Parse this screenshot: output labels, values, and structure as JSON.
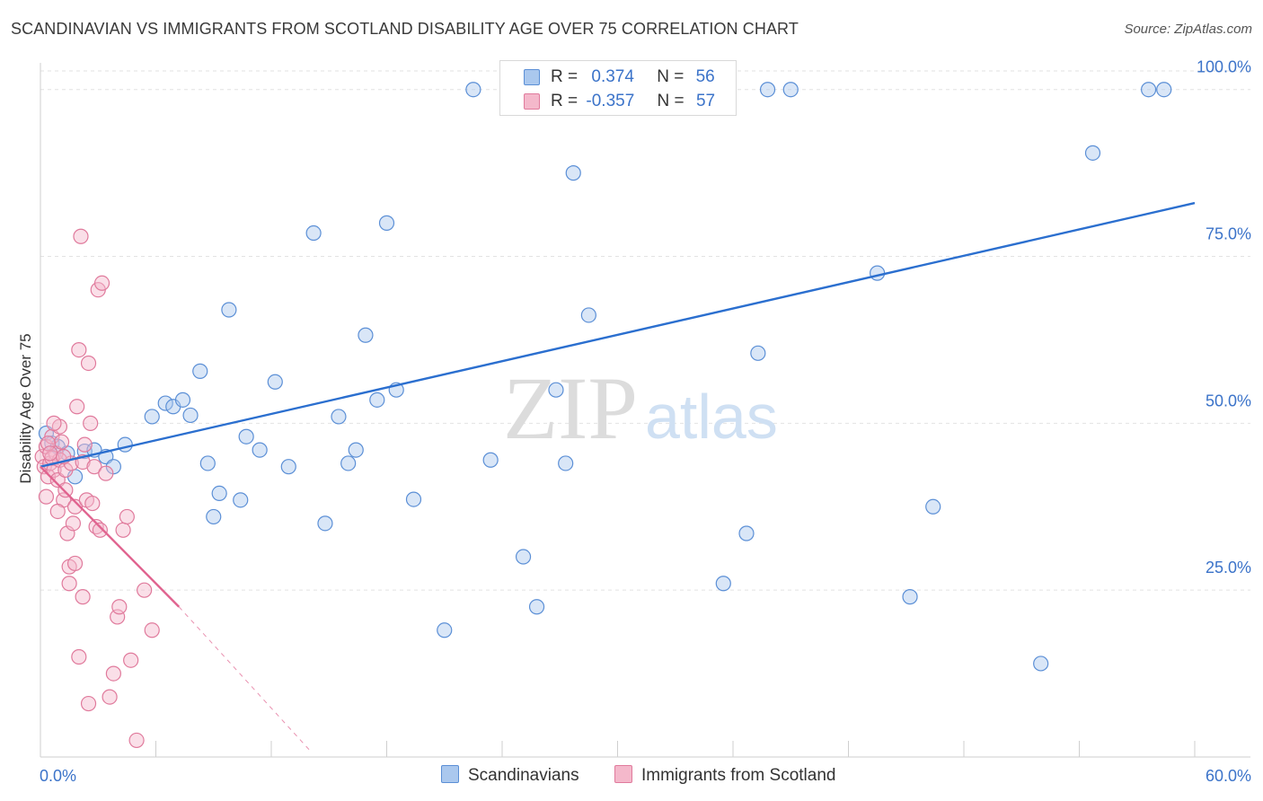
{
  "title": "SCANDINAVIAN VS IMMIGRANTS FROM SCOTLAND DISABILITY AGE OVER 75 CORRELATION CHART",
  "source": "Source: ZipAtlas.com",
  "watermark": {
    "zip": "ZIP",
    "atlas": "atlas"
  },
  "colors": {
    "blue_fill": "#aac8ee",
    "blue_stroke": "#5b8fd6",
    "blue_line": "#2b6fcf",
    "pink_fill": "#f4b8cb",
    "pink_stroke": "#e07a9c",
    "pink_line": "#e0638f",
    "grid": "#e2e2e2",
    "axis_text": "#3b73c9"
  },
  "legend": {
    "rows": [
      {
        "r_label": "R =",
        "r_value": "0.374",
        "n_label": "N =",
        "n_value": "56"
      },
      {
        "r_label": "R =",
        "r_value": "-0.357",
        "n_label": "N =",
        "n_value": "57"
      }
    ],
    "series": [
      "Scandinavians",
      "Immigrants from Scotland"
    ]
  },
  "chart_data": {
    "type": "scatter",
    "title": "SCANDINAVIAN VS IMMIGRANTS FROM SCOTLAND DISABILITY AGE OVER 75 CORRELATION CHART",
    "ylabel": "Disability Age Over 75",
    "xlabel": "",
    "xlim": [
      0,
      60
    ],
    "ylim": [
      0,
      104
    ],
    "x_tick_labels": [
      {
        "value": 0,
        "label": "0.0%"
      },
      {
        "value": 60,
        "label": "60.0%"
      }
    ],
    "y_tick_labels": [
      {
        "value": 25,
        "label": "25.0%"
      },
      {
        "value": 50,
        "label": "50.0%"
      },
      {
        "value": 75,
        "label": "75.0%"
      },
      {
        "value": 100,
        "label": "100.0%"
      }
    ],
    "grid": true,
    "legend_position": "top-center",
    "series": [
      {
        "name": "Scandinavians",
        "color": "#aac8ee",
        "trend": {
          "x": [
            0.0,
            60.0
          ],
          "y": [
            43.5,
            83.0
          ]
        },
        "points": [
          [
            0.3,
            48.5
          ],
          [
            0.6,
            47.0
          ],
          [
            0.9,
            46.5
          ],
          [
            1.4,
            45.5
          ],
          [
            1.8,
            42.0
          ],
          [
            2.3,
            45.8
          ],
          [
            2.8,
            46.0
          ],
          [
            3.4,
            45.0
          ],
          [
            3.8,
            43.5
          ],
          [
            4.4,
            46.8
          ],
          [
            5.8,
            51.0
          ],
          [
            6.5,
            53.0
          ],
          [
            6.9,
            52.5
          ],
          [
            7.4,
            53.5
          ],
          [
            7.8,
            51.2
          ],
          [
            8.3,
            57.8
          ],
          [
            8.7,
            44.0
          ],
          [
            9.3,
            39.5
          ],
          [
            9.8,
            67.0
          ],
          [
            10.4,
            38.5
          ],
          [
            10.7,
            48.0
          ],
          [
            11.4,
            46.0
          ],
          [
            12.2,
            56.2
          ],
          [
            12.9,
            43.5
          ],
          [
            14.2,
            78.5
          ],
          [
            14.8,
            35.0
          ],
          [
            15.5,
            51.0
          ],
          [
            16.4,
            46.0
          ],
          [
            16.0,
            44.0
          ],
          [
            16.9,
            63.2
          ],
          [
            17.5,
            53.5
          ],
          [
            18.0,
            80.0
          ],
          [
            18.5,
            55.0
          ],
          [
            19.4,
            38.6
          ],
          [
            21.0,
            19.0
          ],
          [
            22.5,
            100.0
          ],
          [
            23.4,
            44.5
          ],
          [
            25.1,
            30.0
          ],
          [
            25.8,
            22.5
          ],
          [
            26.8,
            55.0
          ],
          [
            27.3,
            44.0
          ],
          [
            27.7,
            87.5
          ],
          [
            28.5,
            66.2
          ],
          [
            35.5,
            26.0
          ],
          [
            36.7,
            33.5
          ],
          [
            37.3,
            60.5
          ],
          [
            37.8,
            100.0
          ],
          [
            39.0,
            100.0
          ],
          [
            43.5,
            72.5
          ],
          [
            45.2,
            24.0
          ],
          [
            46.4,
            37.5
          ],
          [
            52.0,
            14.0
          ],
          [
            54.7,
            90.5
          ],
          [
            57.6,
            100.0
          ],
          [
            58.4,
            100.0
          ],
          [
            9.0,
            36.0
          ]
        ]
      },
      {
        "name": "Immigrants from Scotland",
        "color": "#f4b8cb",
        "trend": {
          "x": [
            0.0,
            7.2
          ],
          "y": [
            43.5,
            22.5
          ]
        },
        "trend_dashed": {
          "x": [
            7.2,
            14.0
          ],
          "y": [
            22.5,
            1.0
          ]
        },
        "points": [
          [
            0.1,
            45.0
          ],
          [
            0.2,
            43.5
          ],
          [
            0.3,
            46.5
          ],
          [
            0.4,
            42.0
          ],
          [
            0.5,
            44.0
          ],
          [
            0.6,
            48.0
          ],
          [
            0.7,
            43.0
          ],
          [
            0.8,
            45.5
          ],
          [
            0.9,
            41.5
          ],
          [
            1.0,
            44.5
          ],
          [
            1.1,
            47.2
          ],
          [
            1.2,
            38.5
          ],
          [
            1.3,
            43.0
          ],
          [
            1.4,
            33.5
          ],
          [
            1.5,
            28.5
          ],
          [
            1.6,
            44.0
          ],
          [
            1.7,
            35.0
          ],
          [
            1.8,
            37.5
          ],
          [
            1.9,
            52.5
          ],
          [
            2.0,
            61.0
          ],
          [
            2.1,
            78.0
          ],
          [
            2.2,
            44.2
          ],
          [
            2.3,
            46.8
          ],
          [
            2.4,
            38.5
          ],
          [
            2.5,
            59.0
          ],
          [
            2.6,
            50.0
          ],
          [
            2.7,
            38.0
          ],
          [
            2.8,
            43.5
          ],
          [
            2.9,
            34.5
          ],
          [
            3.0,
            70.0
          ],
          [
            3.2,
            71.0
          ],
          [
            3.4,
            42.5
          ],
          [
            3.6,
            9.0
          ],
          [
            3.8,
            12.5
          ],
          [
            4.0,
            21.0
          ],
          [
            4.1,
            22.5
          ],
          [
            4.3,
            34.0
          ],
          [
            4.5,
            36.0
          ],
          [
            4.7,
            14.5
          ],
          [
            5.0,
            2.5
          ],
          [
            5.4,
            25.0
          ],
          [
            5.8,
            19.0
          ],
          [
            1.0,
            49.5
          ],
          [
            0.4,
            47.0
          ],
          [
            0.9,
            36.8
          ],
          [
            1.3,
            40.0
          ],
          [
            0.6,
            44.8
          ],
          [
            1.8,
            29.0
          ],
          [
            2.2,
            24.0
          ],
          [
            2.5,
            8.0
          ],
          [
            3.1,
            34.0
          ],
          [
            0.3,
            39.0
          ],
          [
            0.7,
            50.0
          ],
          [
            1.5,
            26.0
          ],
          [
            2.0,
            15.0
          ],
          [
            0.5,
            45.5
          ],
          [
            1.2,
            45.0
          ]
        ]
      }
    ]
  }
}
